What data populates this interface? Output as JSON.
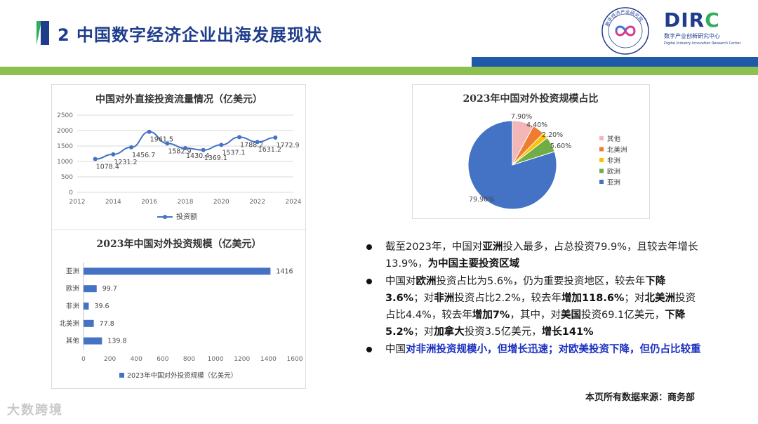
{
  "header": {
    "title": "2 中国数字经济企业出海发展现状",
    "logo_dirc": "DIRC",
    "logo_dirc_cn": "数字产业创新研究中心",
    "logo_dirc_en": "Digital Industry Innovation Research Center",
    "logo_seal_text": "数字经济产业研究院"
  },
  "colors": {
    "brand_blue": "#1f3d8c",
    "brand_green": "#2eae5a",
    "band_green": "#8cc04f",
    "band_blue": "#1f5aa8",
    "highlight_blue": "#1a2fc0"
  },
  "chart_data": [
    {
      "type": "line",
      "title": "中国对外直接投资流量情况（亿美元）",
      "x": [
        2013,
        2014,
        2015,
        2016,
        2017,
        2018,
        2019,
        2020,
        2021,
        2022,
        2023
      ],
      "series": [
        {
          "name": "投资额",
          "values": [
            1078.4,
            1231.2,
            1456.7,
            1961.5,
            1582.9,
            1430.4,
            1369.1,
            1537.1,
            1788.2,
            1631.2,
            1772.9
          ]
        }
      ],
      "data_labels": [
        "1078.4",
        "1231.2",
        "1456.7",
        "1961.5",
        "1582.9",
        "1430.4",
        "1369.1",
        "1537.1",
        "1788.2",
        "1631.2",
        "1772.9"
      ],
      "xlim": [
        2012,
        2024
      ],
      "ylim": [
        0,
        2500
      ],
      "x_ticks": [
        "2012",
        "2014",
        "2016",
        "2018",
        "2020",
        "2022",
        "2024"
      ],
      "y_ticks": [
        "0",
        "500",
        "1000",
        "1500",
        "2000",
        "2500"
      ],
      "grid": true,
      "legend": "bottom",
      "color": "#4472c4"
    },
    {
      "type": "bar",
      "orientation": "horizontal",
      "title": "2023年中国对外投资规模（亿美元）",
      "categories": [
        "亚洲",
        "欧洲",
        "非洲",
        "北美洲",
        "其他"
      ],
      "series": [
        {
          "name": "2023年中国对外投资规模（亿美元）",
          "values": [
            1416,
            99.7,
            39.6,
            77.8,
            139.8
          ]
        }
      ],
      "data_labels": [
        "1416",
        "99.7",
        "39.6",
        "77.8",
        "139.8"
      ],
      "xlim": [
        0,
        1600
      ],
      "x_ticks": [
        "0",
        "200",
        "400",
        "600",
        "800",
        "1000",
        "1200",
        "1400",
        "1600"
      ],
      "legend": "bottom",
      "color": "#4472c4"
    },
    {
      "type": "pie",
      "title": "2023年中国对外投资规模占比",
      "slices": [
        {
          "name": "亚洲",
          "value": 79.9,
          "label": "79.90%",
          "color": "#4472c4"
        },
        {
          "name": "其他",
          "value": 7.9,
          "label": "7.90%",
          "color": "#f4b6b6"
        },
        {
          "name": "北美洲",
          "value": 4.4,
          "label": "4.40%",
          "color": "#ed7d31"
        },
        {
          "name": "非洲",
          "value": 2.2,
          "label": "2.20%",
          "color": "#ffc000"
        },
        {
          "name": "欧洲",
          "value": 5.6,
          "label": "5.60%",
          "color": "#70ad47"
        }
      ],
      "legend_order": [
        "其他",
        "北美洲",
        "非洲",
        "欧洲",
        "亚洲"
      ],
      "legend": "right"
    }
  ],
  "bullets": [
    [
      {
        "t": "截至2023年，中国对",
        "s": "n"
      },
      {
        "t": "亚洲",
        "s": "b"
      },
      {
        "t": "投入最多，占总投资79.9%，且较去年增长13.9%，",
        "s": "n"
      },
      {
        "t": "为中国主要投资区域",
        "s": "b"
      }
    ],
    [
      {
        "t": "中国对",
        "s": "n"
      },
      {
        "t": "欧洲",
        "s": "b"
      },
      {
        "t": "投资占比为5.6%，仍为重要投资地区，较去年",
        "s": "n"
      },
      {
        "t": "下降3.6%",
        "s": "b"
      },
      {
        "t": "；对",
        "s": "n"
      },
      {
        "t": "非洲",
        "s": "b"
      },
      {
        "t": "投资占比2.2%，较去年",
        "s": "n"
      },
      {
        "t": "增加118.6%",
        "s": "b"
      },
      {
        "t": "；对",
        "s": "n"
      },
      {
        "t": "北美洲",
        "s": "b"
      },
      {
        "t": "投资占比4.4%，较去年",
        "s": "n"
      },
      {
        "t": "增加7%",
        "s": "b"
      },
      {
        "t": "，其中，对",
        "s": "n"
      },
      {
        "t": "美国",
        "s": "b"
      },
      {
        "t": "投资69.1亿美元，",
        "s": "n"
      },
      {
        "t": "下降5.2%",
        "s": "b"
      },
      {
        "t": "；对",
        "s": "n"
      },
      {
        "t": "加拿大",
        "s": "b"
      },
      {
        "t": "投资3.5亿美元，",
        "s": "n"
      },
      {
        "t": "增长141%",
        "s": "b"
      }
    ],
    [
      {
        "t": "中国",
        "s": "n"
      },
      {
        "t": "对非洲投资规模小，但增长迅速；对欧美投资下降，但仍占比较重",
        "s": "blue"
      }
    ]
  ],
  "footer": {
    "source": "本页所有数据来源：商务部",
    "watermark": "大数跨境"
  }
}
